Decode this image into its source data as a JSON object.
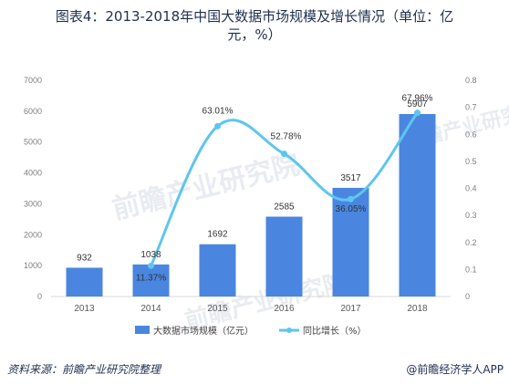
{
  "title": {
    "line1": "图表4：2013-2018年中国大数据市场规模及增长情况（单位：亿",
    "line2": "元，%）"
  },
  "footer": {
    "source": "资料来源：前瞻产业研究院整理",
    "brand": "@前瞻经济学人APP"
  },
  "watermark": {
    "text": "前瞻产业研究院"
  },
  "colors": {
    "bar": "#4a86e0",
    "line": "#5ec5f0",
    "grid": "#e0e0e0"
  },
  "chart_data": {
    "type": "bar",
    "categories": [
      "2013",
      "2014",
      "2015",
      "2016",
      "2017",
      "2018"
    ],
    "series": [
      {
        "name": "大数据市场规模（亿元）",
        "type": "bar",
        "axis": "left",
        "values": [
          932,
          1038,
          1692,
          2585,
          3517,
          5907
        ],
        "labels": [
          "932",
          "1038",
          "1692",
          "2585",
          "3517",
          "5907"
        ]
      },
      {
        "name": "同比增长（%）",
        "type": "line",
        "axis": "right",
        "values": [
          null,
          0.1137,
          0.6301,
          0.5278,
          0.3605,
          0.6796
        ],
        "labels": [
          "",
          "11.37%",
          "63.01%",
          "52.78%",
          "36.05%",
          "67.96%"
        ]
      }
    ],
    "y_left": {
      "ylim": [
        0,
        7000
      ],
      "ticks": [
        "0",
        "1000",
        "2000",
        "3000",
        "4000",
        "5000",
        "6000",
        "7000"
      ]
    },
    "y_right": {
      "ylim": [
        0,
        0.8
      ],
      "ticks": [
        "0",
        "0.1",
        "0.2",
        "0.3",
        "0.4",
        "0.5",
        "0.6",
        "0.7",
        "0.8"
      ]
    },
    "legend_position": "bottom",
    "grid": false
  }
}
